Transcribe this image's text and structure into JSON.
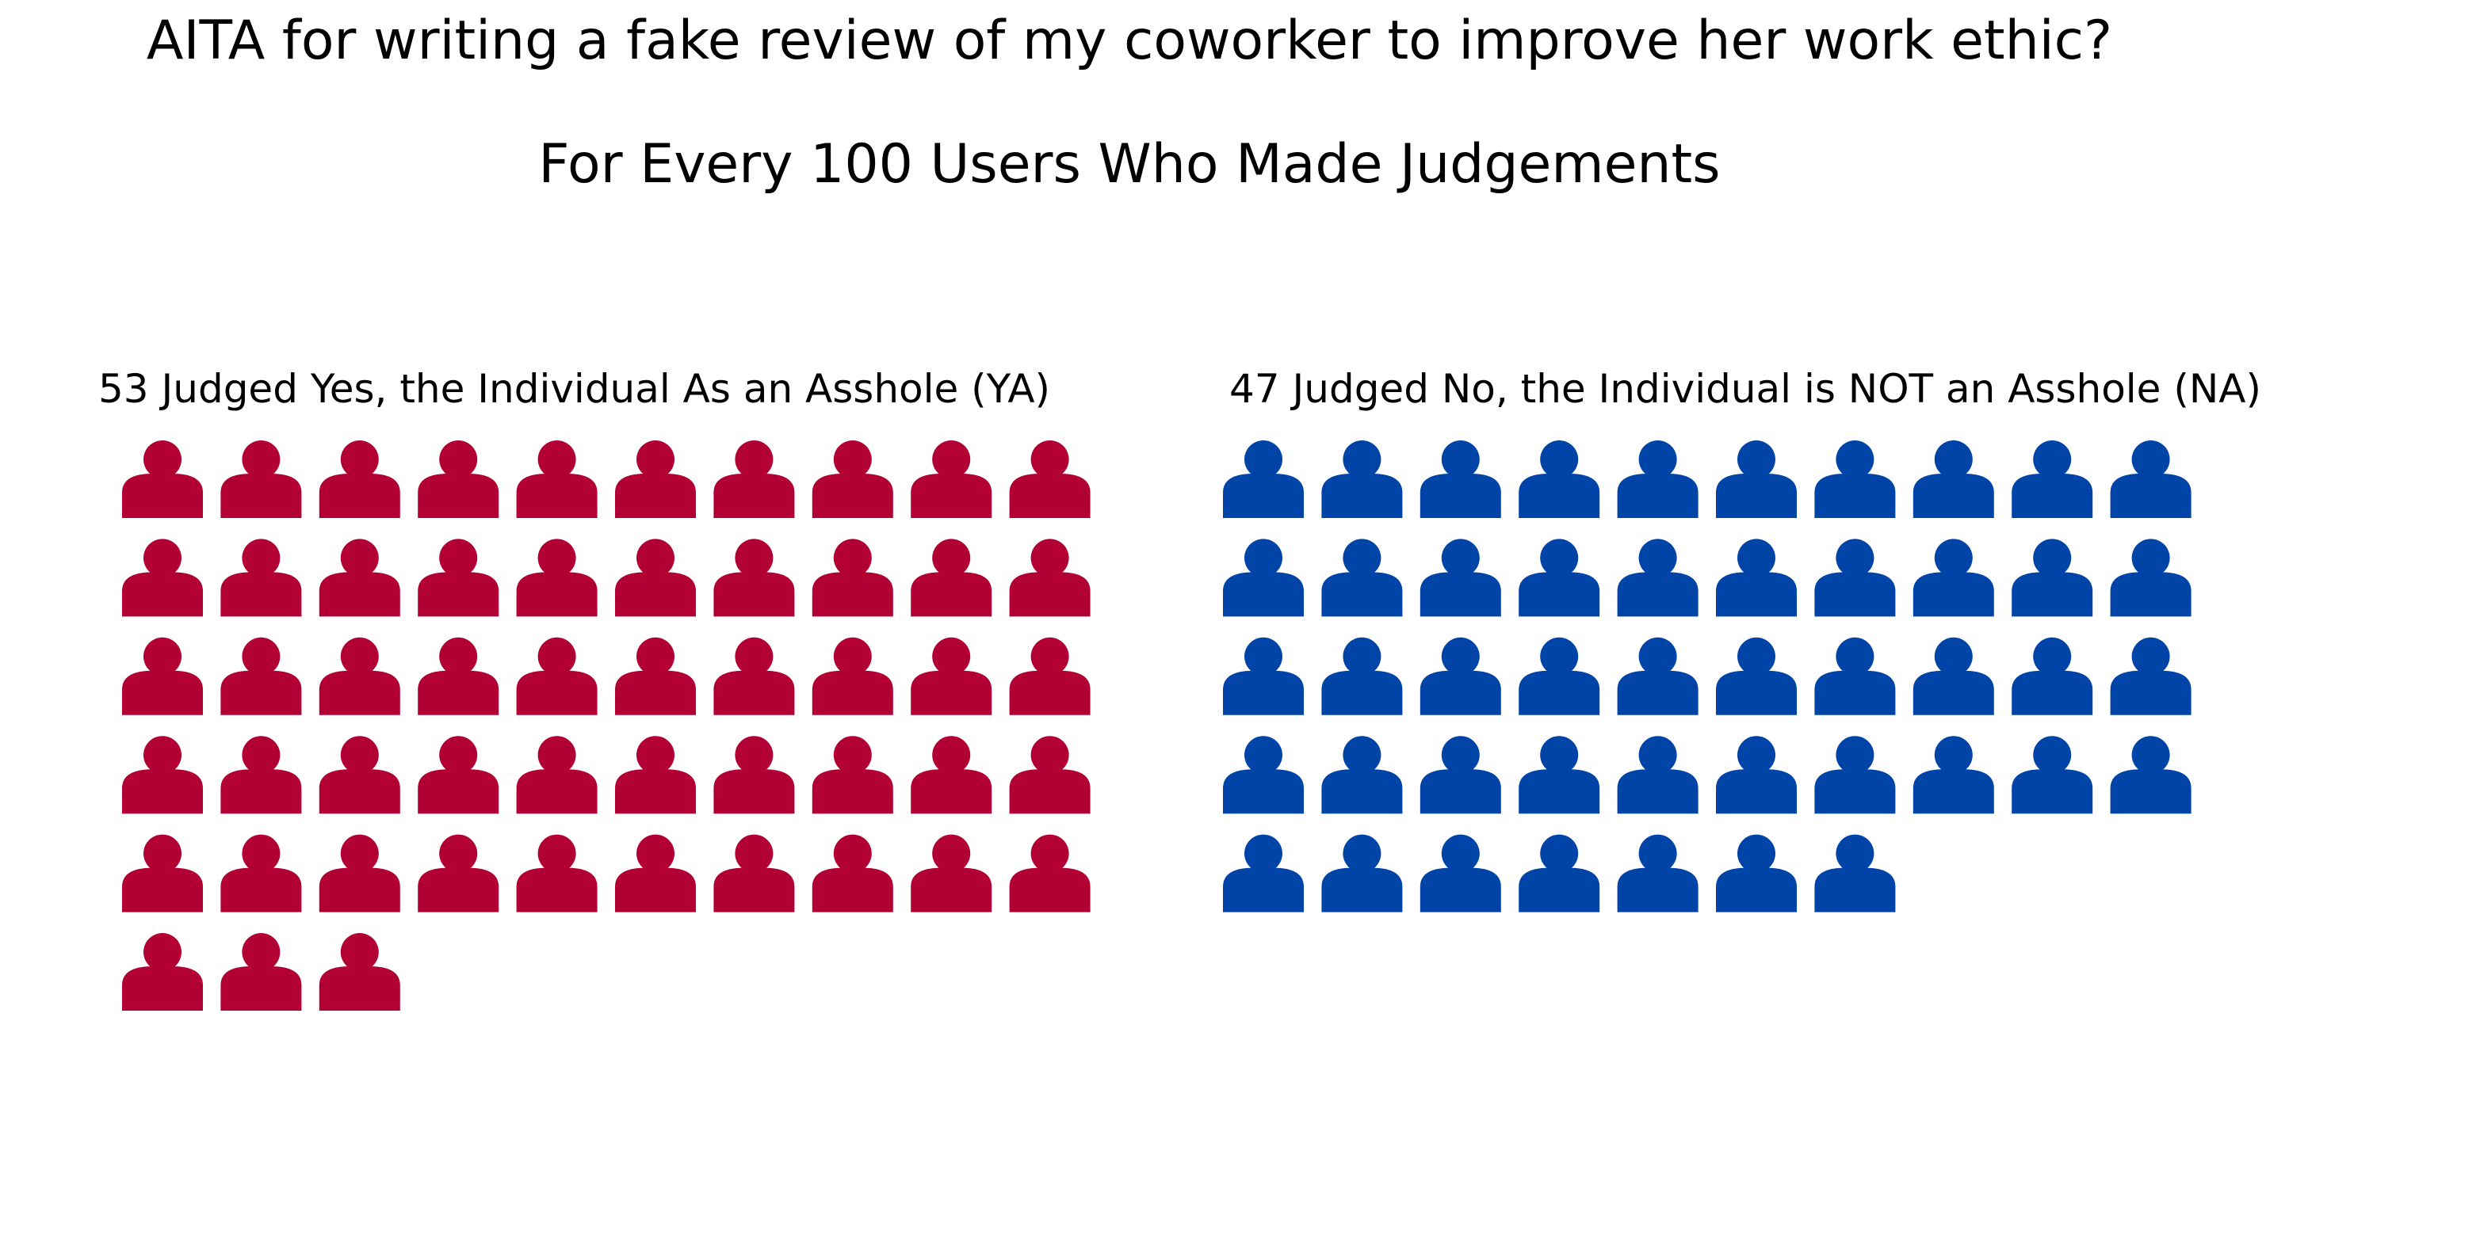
{
  "chart_data": {
    "type": "pictograph",
    "title": "AITA for writing a fake review of my coworker to improve her work ethic?",
    "subtitle": "For Every 100 Users Who Made Judgements",
    "icons_per_row": 10,
    "icon": "person-icon",
    "groups": [
      {
        "key": "ya",
        "label": "53 Judged Yes, the Individual As an Asshole (YA)",
        "count": 53,
        "color": "#b20034"
      },
      {
        "key": "na",
        "label": "47 Judged No, the Individual is NOT an Asshole (NA)",
        "count": 47,
        "color": "#0044a8"
      }
    ]
  }
}
